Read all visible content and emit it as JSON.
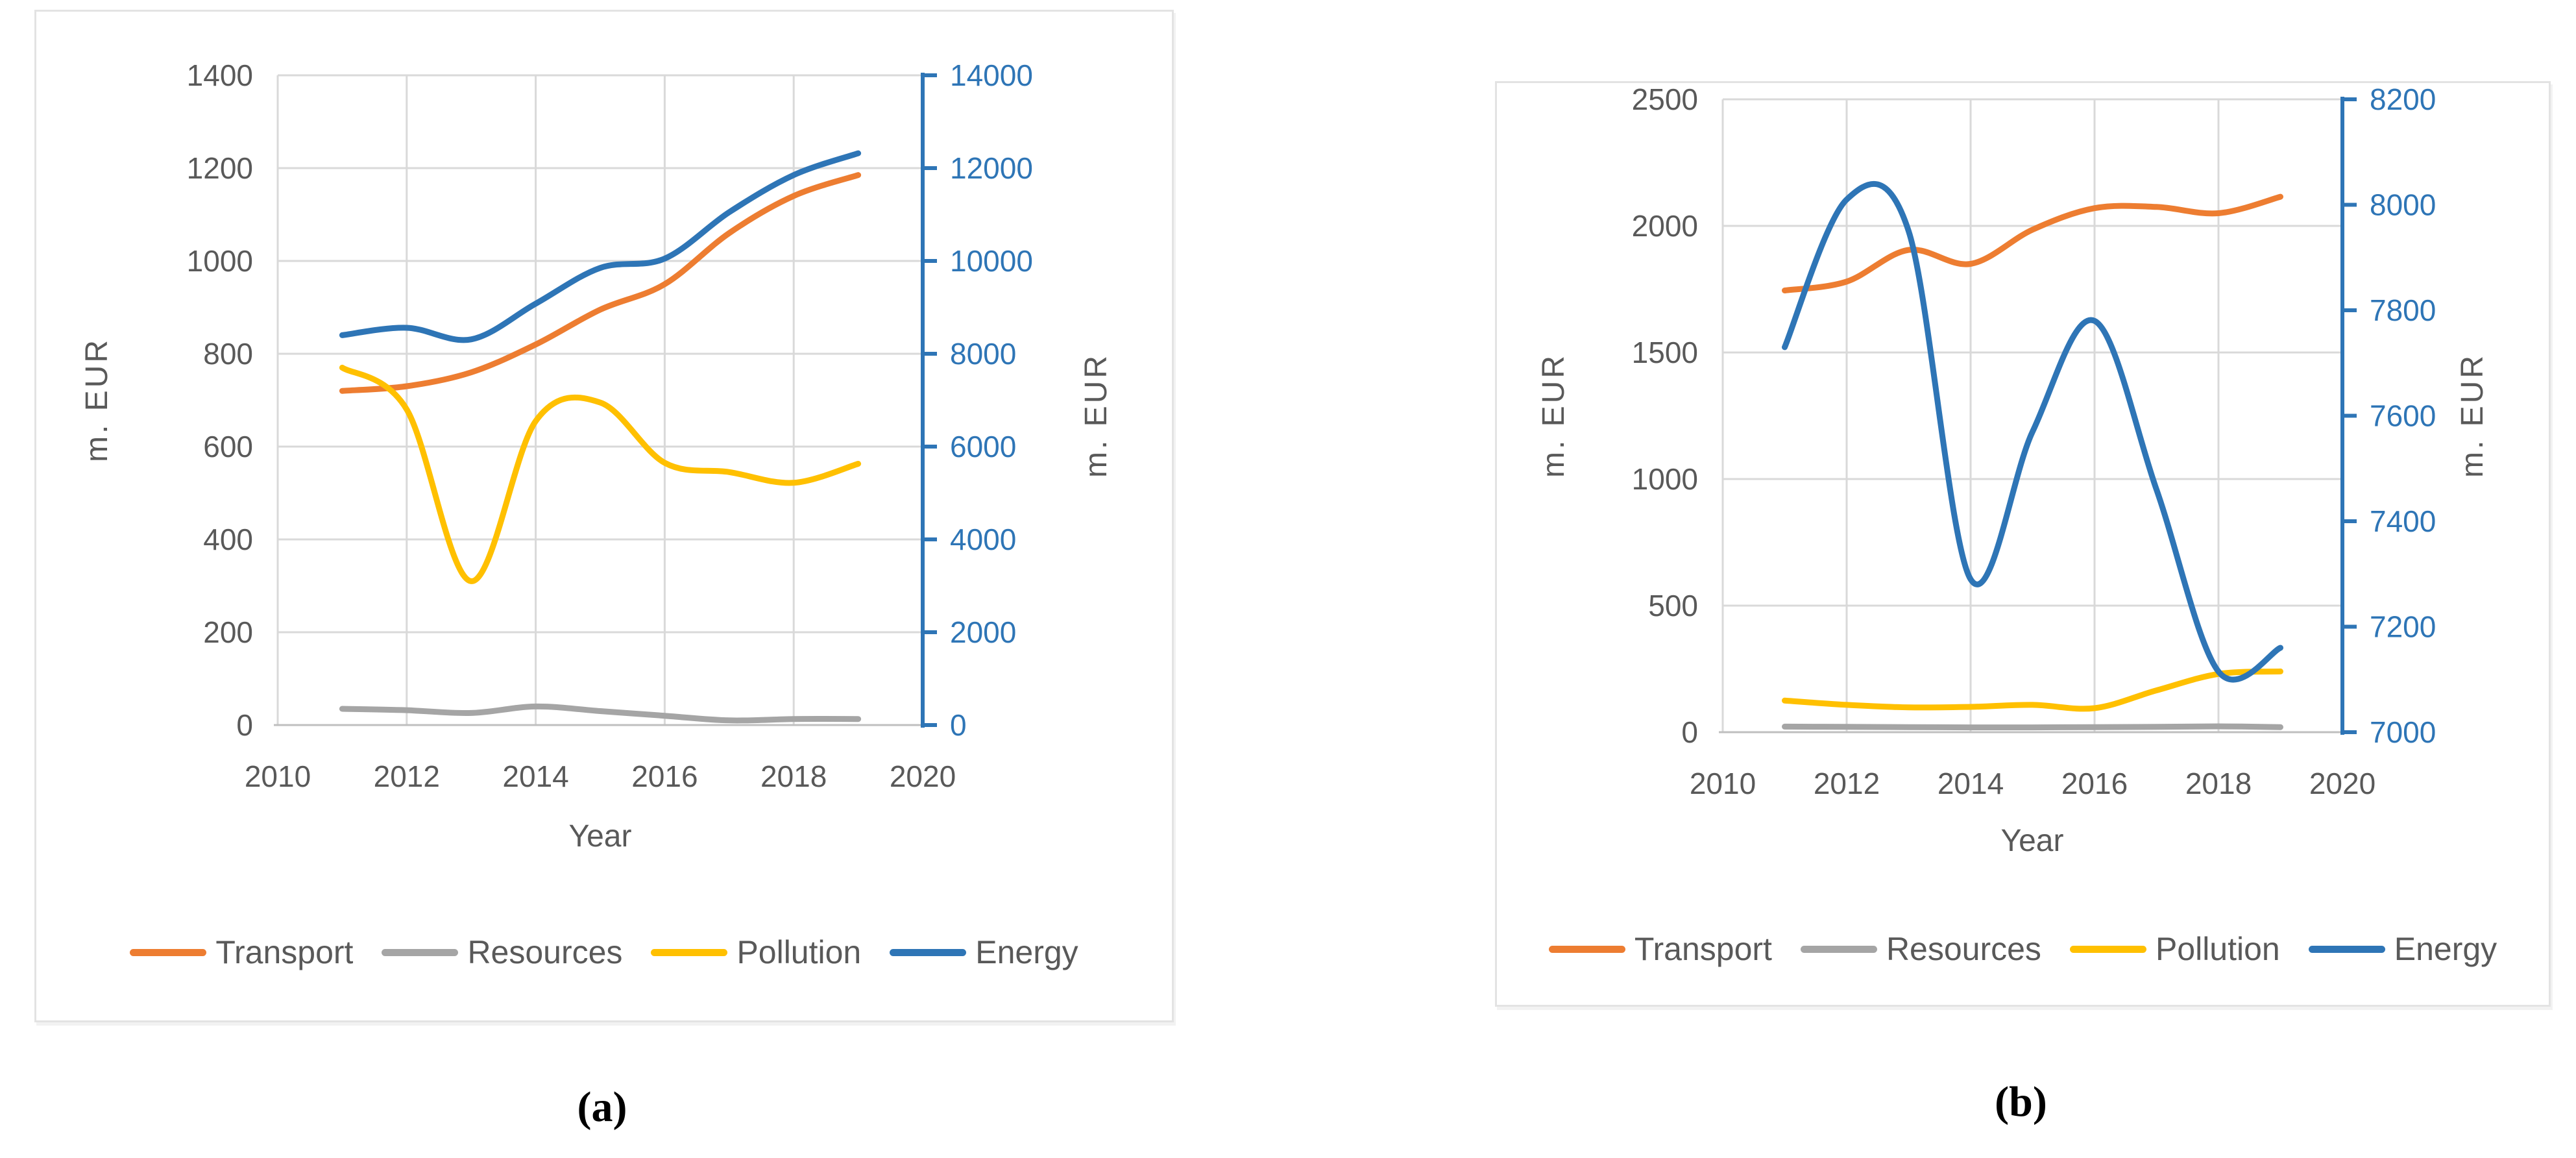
{
  "colors": {
    "transport": "#ED7D31",
    "resources": "#A5A5A5",
    "pollution": "#FFC000",
    "energy": "#2E75B6",
    "grid": "#D9D9D9",
    "axis_line": "#BFBFBF",
    "tick_text": "#595959",
    "right_axis": "#2E75B6"
  },
  "chart_data": [
    {
      "type": "line",
      "caption": "(a)",
      "xlabel": "Year",
      "ylabel_left": "m. EUR",
      "ylabel_right": "m. EUR",
      "grid": true,
      "legend_position": "bottom",
      "x": [
        2011,
        2012,
        2013,
        2014,
        2015,
        2016,
        2017,
        2018,
        2019
      ],
      "x_ticks": [
        "2010",
        "2012",
        "2014",
        "2016",
        "2018",
        "2020"
      ],
      "xlim": [
        2010,
        2020
      ],
      "left_ylim": [
        0,
        1400
      ],
      "left_step": 200,
      "right_ylim": [
        0,
        14000
      ],
      "right_step": 2000,
      "series": [
        {
          "name": "Transport",
          "axis": "left",
          "color_key": "transport",
          "values": [
            720,
            730,
            760,
            820,
            895,
            950,
            1060,
            1140,
            1185
          ]
        },
        {
          "name": "Resources",
          "axis": "left",
          "color_key": "resources",
          "values": [
            35,
            32,
            26,
            40,
            30,
            20,
            10,
            13,
            13
          ]
        },
        {
          "name": "Pollution",
          "axis": "left",
          "color_key": "pollution",
          "values": [
            770,
            680,
            310,
            655,
            695,
            565,
            545,
            522,
            563
          ]
        },
        {
          "name": "Energy",
          "axis": "right",
          "color_key": "energy",
          "values": [
            8400,
            8560,
            8310,
            9080,
            9850,
            10050,
            11050,
            11850,
            12320
          ]
        }
      ]
    },
    {
      "type": "line",
      "caption": "(b)",
      "xlabel": "Year",
      "ylabel_left": "m. EUR",
      "ylabel_right": "m. EUR",
      "grid": true,
      "legend_position": "bottom",
      "x": [
        2011,
        2012,
        2013,
        2014,
        2015,
        2016,
        2017,
        2018,
        2019
      ],
      "x_ticks": [
        "2010",
        "2012",
        "2014",
        "2016",
        "2018",
        "2020"
      ],
      "xlim": [
        2010,
        2020
      ],
      "left_ylim": [
        0,
        2500
      ],
      "left_step": 500,
      "right_ylim": [
        7000,
        8200
      ],
      "right_step": 200,
      "series": [
        {
          "name": "Transport",
          "axis": "left",
          "color_key": "transport",
          "values": [
            1745,
            1780,
            1905,
            1850,
            1985,
            2070,
            2075,
            2050,
            2115
          ]
        },
        {
          "name": "Resources",
          "axis": "left",
          "color_key": "resources",
          "values": [
            22,
            21,
            20,
            19,
            19,
            20,
            21,
            23,
            20
          ]
        },
        {
          "name": "Pollution",
          "axis": "left",
          "color_key": "pollution",
          "values": [
            125,
            108,
            98,
            100,
            108,
            95,
            165,
            230,
            240
          ]
        },
        {
          "name": "Energy",
          "axis": "right",
          "color_key": "energy",
          "values": [
            7730,
            8010,
            7950,
            7290,
            7570,
            7780,
            7460,
            7115,
            7160
          ]
        }
      ]
    }
  ]
}
